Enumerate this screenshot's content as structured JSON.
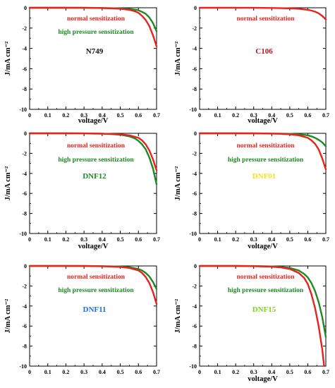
{
  "chart_data": [
    {
      "type": "line",
      "title": "N749",
      "title_color": "#111111",
      "xlabel": "voltage/V",
      "ylabel": "J/mA cm⁻²",
      "xlim": [
        0,
        0.7
      ],
      "ylim": [
        -10,
        0
      ],
      "xticks": [
        "0",
        "0.1",
        "0.2",
        "0.3",
        "0.4",
        "0.5",
        "0.6",
        "0.7"
      ],
      "yticks": [
        "0",
        "-2",
        "-4",
        "-6",
        "-8",
        "-10"
      ],
      "grid": false,
      "series": [
        {
          "name": "normal sensitization",
          "color": "#e8231f",
          "x": [
            0,
            0.1,
            0.2,
            0.3,
            0.4,
            0.45,
            0.5,
            0.55,
            0.58,
            0.6,
            0.62,
            0.64,
            0.66,
            0.68,
            0.7
          ],
          "y": [
            0,
            0,
            0,
            -0.01,
            -0.03,
            -0.06,
            -0.1,
            -0.2,
            -0.35,
            -0.5,
            -0.8,
            -1.2,
            -1.8,
            -2.7,
            -3.8
          ]
        },
        {
          "name": "high pressure sensitization",
          "color": "#1d8a24",
          "x": [
            0,
            0.1,
            0.2,
            0.3,
            0.4,
            0.45,
            0.5,
            0.55,
            0.6,
            0.62,
            0.64,
            0.66,
            0.68,
            0.7
          ],
          "y": [
            0,
            0,
            0,
            0,
            -0.02,
            -0.04,
            -0.07,
            -0.12,
            -0.25,
            -0.4,
            -0.6,
            -0.95,
            -1.5,
            -2.3
          ]
        }
      ]
    },
    {
      "type": "line",
      "title": "C106",
      "title_color": "#c0131e",
      "xlabel": "voltage/V",
      "ylabel": "J/mA cm⁻²",
      "xlim": [
        0,
        0.7
      ],
      "ylim": [
        -10,
        0
      ],
      "xticks": [
        "0",
        "0.1",
        "0.2",
        "0.3",
        "0.4",
        "0.5",
        "0.6",
        "0.7"
      ],
      "yticks": [
        "0",
        "-2",
        "-4",
        "-6",
        "-8",
        "-10"
      ],
      "grid": false,
      "series": [
        {
          "name": "normal sensitization",
          "color": "#e8231f",
          "x": [
            0,
            0.1,
            0.2,
            0.3,
            0.4,
            0.45,
            0.5,
            0.55,
            0.6,
            0.62,
            0.64,
            0.66,
            0.68,
            0.7
          ],
          "y": [
            0,
            0,
            0,
            -0.01,
            -0.02,
            -0.04,
            -0.06,
            -0.1,
            -0.2,
            -0.28,
            -0.38,
            -0.55,
            -0.8,
            -1.15
          ]
        }
      ]
    },
    {
      "type": "line",
      "title": "DNF12",
      "title_color": "#1d8a24",
      "xlabel": "voltage/V",
      "ylabel": "J/mA cm⁻²",
      "xlim": [
        0,
        0.7
      ],
      "ylim": [
        -10,
        0
      ],
      "xticks": [
        "0",
        "0.1",
        "0.2",
        "0.3",
        "0.4",
        "0.5",
        "0.6",
        "0.7"
      ],
      "yticks": [
        "0",
        "-2",
        "-4",
        "-6",
        "-8",
        "-10"
      ],
      "grid": false,
      "series": [
        {
          "name": "normal sensitization",
          "color": "#e8231f",
          "x": [
            0,
            0.1,
            0.2,
            0.3,
            0.4,
            0.45,
            0.5,
            0.55,
            0.6,
            0.62,
            0.64,
            0.66,
            0.68,
            0.7
          ],
          "y": [
            0,
            0,
            0,
            -0.01,
            -0.03,
            -0.06,
            -0.1,
            -0.2,
            -0.45,
            -0.7,
            -1.1,
            -1.7,
            -2.6,
            -3.7
          ]
        },
        {
          "name": "high pressure sensitization",
          "color": "#1d8a24",
          "x": [
            0,
            0.1,
            0.2,
            0.3,
            0.4,
            0.45,
            0.5,
            0.55,
            0.58,
            0.6,
            0.62,
            0.64,
            0.66,
            0.68,
            0.7
          ],
          "y": [
            0,
            0,
            0,
            -0.01,
            -0.04,
            -0.08,
            -0.14,
            -0.3,
            -0.5,
            -0.75,
            -1.1,
            -1.6,
            -2.4,
            -3.5,
            -5.1
          ]
        }
      ]
    },
    {
      "type": "line",
      "title": "DNF01",
      "title_color": "#f2e21a",
      "xlabel": "voltage/V",
      "ylabel": "J/mA cm⁻²",
      "xlim": [
        0,
        0.7
      ],
      "ylim": [
        -10,
        0
      ],
      "xticks": [
        "0",
        "0.1",
        "0.2",
        "0.3",
        "0.4",
        "0.5",
        "0.6",
        "0.7"
      ],
      "yticks": [
        "0",
        "-2",
        "-4",
        "-6",
        "-8",
        "-10"
      ],
      "grid": false,
      "series": [
        {
          "name": "normal sensitization",
          "color": "#e8231f",
          "x": [
            0,
            0.1,
            0.2,
            0.3,
            0.4,
            0.45,
            0.5,
            0.55,
            0.6,
            0.62,
            0.64,
            0.66,
            0.68,
            0.7
          ],
          "y": [
            0,
            0,
            0,
            -0.01,
            -0.03,
            -0.05,
            -0.1,
            -0.2,
            -0.45,
            -0.7,
            -1.05,
            -1.6,
            -2.5,
            -3.6
          ]
        },
        {
          "name": "high pressure sensitization",
          "color": "#1d8a24",
          "x": [
            0,
            0.1,
            0.2,
            0.3,
            0.4,
            0.45,
            0.5,
            0.55,
            0.6,
            0.62,
            0.64,
            0.66,
            0.68,
            0.7
          ],
          "y": [
            0,
            0,
            0,
            0,
            -0.02,
            -0.03,
            -0.05,
            -0.1,
            -0.2,
            -0.3,
            -0.45,
            -0.65,
            -0.9,
            -1.3
          ]
        }
      ]
    },
    {
      "type": "line",
      "title": "DNF11",
      "title_color": "#1f6fd6",
      "xlabel": "",
      "ylabel": "J/mA cm⁻²",
      "xlim": [
        0,
        0.7
      ],
      "ylim": [
        -10,
        0
      ],
      "xticks": [
        "0",
        "0.1",
        "0.2",
        "0.3",
        "0.4",
        "0.5",
        "0.6",
        "0.7"
      ],
      "yticks": [
        "0",
        "-2",
        "-4",
        "-6",
        "-8",
        "-10"
      ],
      "grid": false,
      "series": [
        {
          "name": "normal sensitization",
          "color": "#e8231f",
          "x": [
            0,
            0.1,
            0.2,
            0.3,
            0.4,
            0.45,
            0.5,
            0.55,
            0.6,
            0.62,
            0.64,
            0.66,
            0.68,
            0.7
          ],
          "y": [
            0,
            0,
            0,
            -0.01,
            -0.03,
            -0.06,
            -0.1,
            -0.2,
            -0.45,
            -0.7,
            -1.1,
            -1.7,
            -2.6,
            -3.8
          ]
        },
        {
          "name": "high pressure sensitization",
          "color": "#1d8a24",
          "x": [
            0,
            0.1,
            0.2,
            0.3,
            0.4,
            0.45,
            0.5,
            0.55,
            0.6,
            0.62,
            0.64,
            0.66,
            0.68,
            0.7
          ],
          "y": [
            0,
            0,
            0,
            0,
            -0.02,
            -0.04,
            -0.07,
            -0.13,
            -0.3,
            -0.45,
            -0.7,
            -1.05,
            -1.6,
            -2.3
          ]
        }
      ]
    },
    {
      "type": "line",
      "title": "DNF15",
      "title_color": "#7fd321",
      "xlabel": "voltage/V",
      "ylabel": "J/mA cm⁻²",
      "xlim": [
        0,
        0.7
      ],
      "ylim": [
        -10,
        0
      ],
      "xticks": [
        "0",
        "0.1",
        "0.2",
        "0.3",
        "0.4",
        "0.5",
        "0.6",
        "0.7"
      ],
      "yticks": [
        "0",
        "-2",
        "-4",
        "-6",
        "-8",
        "-10"
      ],
      "grid": false,
      "series": [
        {
          "name": "normal sensitization",
          "color": "#e8231f",
          "x": [
            0,
            0.1,
            0.2,
            0.3,
            0.4,
            0.45,
            0.5,
            0.55,
            0.58,
            0.6,
            0.62,
            0.64,
            0.66,
            0.68,
            0.69
          ],
          "y": [
            0,
            0,
            0,
            -0.02,
            -0.08,
            -0.15,
            -0.3,
            -0.7,
            -1.2,
            -1.8,
            -2.8,
            -4.2,
            -6.0,
            -8.3,
            -9.9
          ]
        },
        {
          "name": "high pressure sensitization",
          "color": "#1d8a24",
          "x": [
            0,
            0.1,
            0.2,
            0.3,
            0.4,
            0.45,
            0.5,
            0.55,
            0.58,
            0.6,
            0.62,
            0.64,
            0.66,
            0.68,
            0.7
          ],
          "y": [
            0,
            0,
            0,
            -0.01,
            -0.05,
            -0.1,
            -0.2,
            -0.45,
            -0.8,
            -1.15,
            -1.7,
            -2.5,
            -3.6,
            -5.1,
            -7.1
          ]
        }
      ]
    }
  ]
}
